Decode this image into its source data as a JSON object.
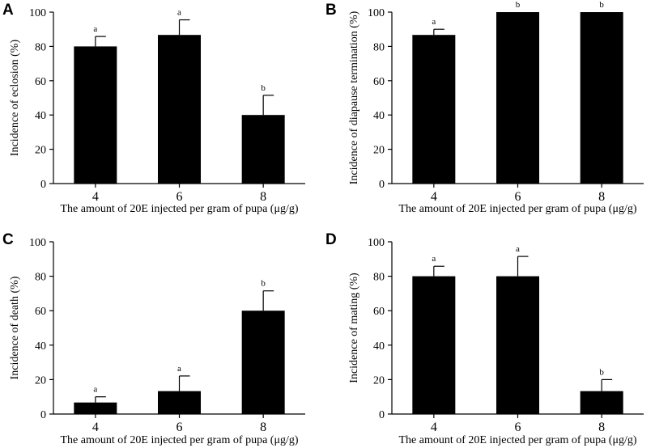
{
  "chart_data": [
    {
      "panel": "A",
      "type": "bar",
      "categories": [
        "4",
        "6",
        "8"
      ],
      "values": [
        80,
        86.7,
        40
      ],
      "errors": [
        5.8,
        8.8,
        11.5
      ],
      "significance": [
        "a",
        "a",
        "b"
      ],
      "xlabel": "The amount of 20E injected per gram of pupa (μg/g)",
      "ylabel": "Incidence of eclosion (%)",
      "ylim": [
        0,
        100
      ],
      "yticks": [
        "0",
        "20",
        "40",
        "60",
        "80",
        "100"
      ]
    },
    {
      "panel": "B",
      "type": "bar",
      "categories": [
        "4",
        "6",
        "8"
      ],
      "values": [
        86.7,
        100,
        100
      ],
      "errors": [
        3.3,
        0,
        0
      ],
      "significance": [
        "a",
        "b",
        "b"
      ],
      "xlabel": "The amount of 20E injected per gram of pupa (μg/g)",
      "ylabel": "Incidence of diapause termination (%)",
      "ylim": [
        0,
        100
      ],
      "yticks": [
        "0",
        "20",
        "40",
        "60",
        "80",
        "100"
      ]
    },
    {
      "panel": "C",
      "type": "bar",
      "categories": [
        "4",
        "6",
        "8"
      ],
      "values": [
        6.7,
        13.3,
        60
      ],
      "errors": [
        3.3,
        8.8,
        11.5
      ],
      "significance": [
        "a",
        "a",
        "b"
      ],
      "xlabel": "The amount of 20E injected per gram of pupa (μg/g)",
      "ylabel": "Incidence of death (%)",
      "ylim": [
        0,
        100
      ],
      "yticks": [
        "0",
        "20",
        "40",
        "60",
        "80",
        "100"
      ]
    },
    {
      "panel": "D",
      "type": "bar",
      "categories": [
        "4",
        "6",
        "8"
      ],
      "values": [
        80,
        80,
        13.3
      ],
      "errors": [
        5.8,
        11.5,
        6.7
      ],
      "significance": [
        "a",
        "a",
        "b"
      ],
      "xlabel": "The amount of 20E injected per gram of pupa (μg/g)",
      "ylabel": "Incidence of mating (%)",
      "ylim": [
        0,
        100
      ],
      "yticks": [
        "0",
        "20",
        "40",
        "60",
        "80",
        "100"
      ]
    }
  ]
}
